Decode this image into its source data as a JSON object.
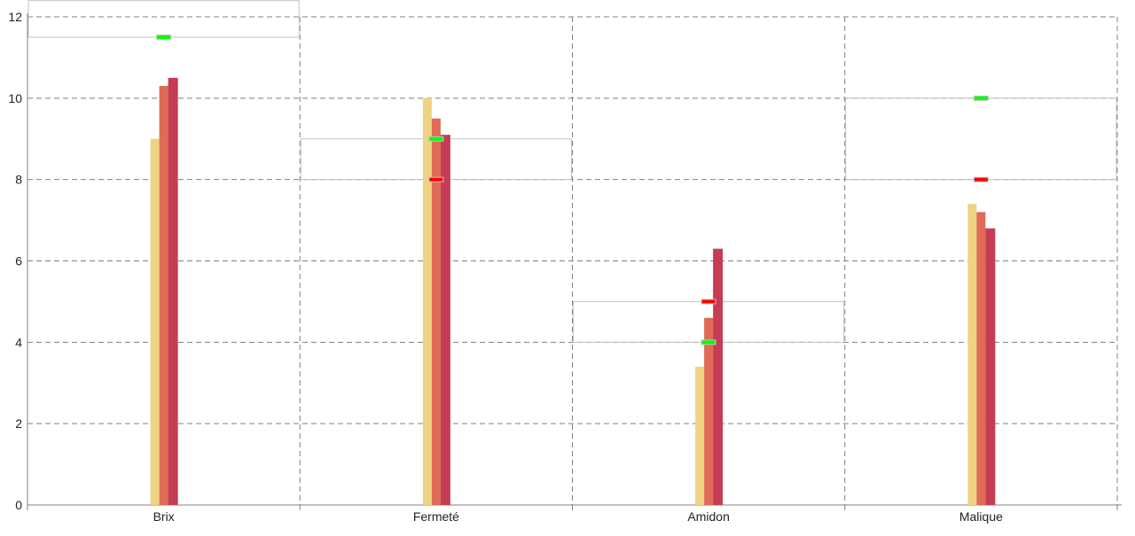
{
  "chart_data": {
    "type": "bar",
    "title": "",
    "xlabel": "",
    "ylabel": "",
    "ylim": [
      0,
      12
    ],
    "yticks": [
      0,
      2,
      4,
      6,
      8,
      10,
      12
    ],
    "grid": true,
    "categories": [
      "Brix",
      "Fermeté",
      "Amidon",
      "Malique"
    ],
    "series": [
      {
        "values": [
          9.0,
          10.0,
          3.4,
          7.4
        ],
        "color": "#edd382"
      },
      {
        "values": [
          10.3,
          9.5,
          4.6,
          7.2
        ],
        "color": "#df6a55"
      },
      {
        "values": [
          10.5,
          9.1,
          6.3,
          6.8
        ],
        "color": "#c43d55"
      }
    ],
    "target_ranges": [
      {
        "low": 11.5,
        "high": 12.4
      },
      {
        "low": 8,
        "high": 9
      },
      {
        "low": 4,
        "high": 5
      },
      {
        "low": 8,
        "high": 10
      }
    ],
    "markers": [
      {
        "green": 11.5,
        "red": null
      },
      {
        "green": 9,
        "red": 8
      },
      {
        "green": 4,
        "red": 5
      },
      {
        "green": 10,
        "red": 8
      }
    ],
    "marker_colors": {
      "green": "#00ff00",
      "red": "#ff0000"
    }
  }
}
